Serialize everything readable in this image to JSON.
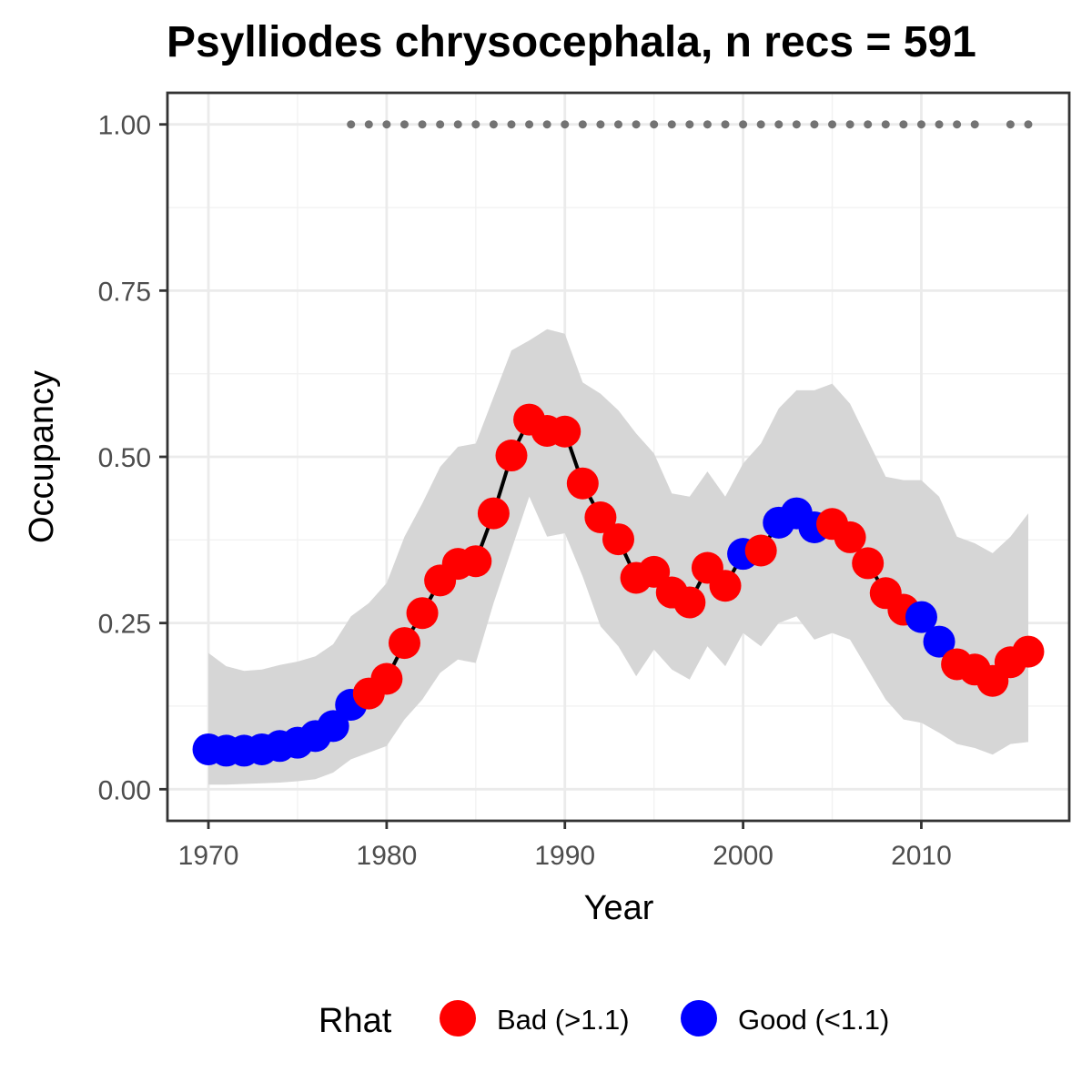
{
  "chart_data": {
    "type": "line",
    "title": "Psylliodes chrysocephala, n recs = 591",
    "xlabel": "Year",
    "ylabel": "Occupancy",
    "xlim": [
      1967.7,
      2018.3
    ],
    "ylim": [
      -0.0475,
      1.0475
    ],
    "x_ticks": [
      1970,
      1980,
      1990,
      2000,
      2010
    ],
    "x_tick_labels": [
      "1970",
      "1980",
      "1990",
      "2000",
      "2010"
    ],
    "y_ticks": [
      0,
      0.25,
      0.5,
      0.75,
      1
    ],
    "y_tick_labels": [
      "0.00",
      "0.25",
      "0.50",
      "0.75",
      "1.00"
    ],
    "grid": true,
    "legend_position": "bottom",
    "legend_title": "Rhat",
    "legend_entries": [
      {
        "label": "Bad (>1.1)",
        "color": "#ff0000"
      },
      {
        "label": "Good (<1.1)",
        "color": "#0000ff"
      }
    ],
    "colors": {
      "bad": "#ff0000",
      "good": "#0000ff",
      "line": "#000000",
      "ribbon": "#d6d6d6",
      "records": "#737373"
    },
    "series": [
      {
        "name": "Occupancy",
        "x": [
          1970,
          1971,
          1972,
          1973,
          1974,
          1975,
          1976,
          1977,
          1978,
          1979,
          1980,
          1981,
          1982,
          1983,
          1984,
          1985,
          1986,
          1987,
          1988,
          1989,
          1990,
          1991,
          1992,
          1993,
          1994,
          1995,
          1996,
          1997,
          1998,
          1999,
          2000,
          2001,
          2002,
          2003,
          2004,
          2005,
          2006,
          2007,
          2008,
          2009,
          2010,
          2011,
          2012,
          2013,
          2014,
          2015,
          2016
        ],
        "y": [
          0.06,
          0.058,
          0.058,
          0.06,
          0.065,
          0.07,
          0.08,
          0.095,
          0.127,
          0.144,
          0.166,
          0.22,
          0.265,
          0.314,
          0.339,
          0.343,
          0.415,
          0.502,
          0.556,
          0.539,
          0.538,
          0.46,
          0.409,
          0.376,
          0.318,
          0.327,
          0.296,
          0.281,
          0.333,
          0.306,
          0.354,
          0.359,
          0.401,
          0.415,
          0.394,
          0.399,
          0.379,
          0.34,
          0.295,
          0.27,
          0.259,
          0.222,
          0.188,
          0.18,
          0.163,
          0.191,
          0.207
        ],
        "rhat": [
          "good",
          "good",
          "good",
          "good",
          "good",
          "good",
          "good",
          "good",
          "good",
          "bad",
          "bad",
          "bad",
          "bad",
          "bad",
          "bad",
          "bad",
          "bad",
          "bad",
          "bad",
          "bad",
          "bad",
          "bad",
          "bad",
          "bad",
          "bad",
          "bad",
          "bad",
          "bad",
          "bad",
          "bad",
          "good",
          "bad",
          "good",
          "good",
          "good",
          "bad",
          "bad",
          "bad",
          "bad",
          "bad",
          "good",
          "good",
          "bad",
          "bad",
          "bad",
          "bad",
          "bad"
        ]
      }
    ],
    "ribbon": {
      "x": [
        1970,
        1971,
        1972,
        1973,
        1974,
        1975,
        1976,
        1977,
        1978,
        1979,
        1980,
        1981,
        1982,
        1983,
        1984,
        1985,
        1986,
        1987,
        1988,
        1989,
        1990,
        1991,
        1992,
        1993,
        1994,
        1995,
        1996,
        1997,
        1998,
        1999,
        2000,
        2001,
        2002,
        2003,
        2004,
        2005,
        2006,
        2007,
        2008,
        2009,
        2010,
        2011,
        2012,
        2013,
        2014,
        2015,
        2016
      ],
      "lower": [
        0.007,
        0.007,
        0.008,
        0.009,
        0.01,
        0.012,
        0.015,
        0.025,
        0.045,
        0.055,
        0.065,
        0.105,
        0.135,
        0.175,
        0.195,
        0.19,
        0.28,
        0.36,
        0.44,
        0.38,
        0.385,
        0.32,
        0.245,
        0.215,
        0.17,
        0.21,
        0.18,
        0.165,
        0.215,
        0.185,
        0.235,
        0.215,
        0.25,
        0.26,
        0.225,
        0.235,
        0.225,
        0.18,
        0.135,
        0.105,
        0.1,
        0.085,
        0.068,
        0.062,
        0.052,
        0.068,
        0.071
      ],
      "upper": [
        0.205,
        0.185,
        0.178,
        0.18,
        0.187,
        0.192,
        0.2,
        0.218,
        0.26,
        0.28,
        0.31,
        0.38,
        0.43,
        0.485,
        0.515,
        0.52,
        0.59,
        0.66,
        0.675,
        0.692,
        0.685,
        0.612,
        0.595,
        0.57,
        0.535,
        0.505,
        0.445,
        0.44,
        0.478,
        0.44,
        0.49,
        0.52,
        0.573,
        0.6,
        0.6,
        0.61,
        0.58,
        0.525,
        0.47,
        0.465,
        0.465,
        0.44,
        0.38,
        0.37,
        0.355,
        0.38,
        0.415
      ]
    },
    "records": {
      "y": 1.0,
      "x": [
        1978,
        1979,
        1980,
        1981,
        1982,
        1983,
        1984,
        1985,
        1986,
        1987,
        1988,
        1989,
        1990,
        1991,
        1992,
        1993,
        1994,
        1995,
        1996,
        1997,
        1998,
        1999,
        2000,
        2001,
        2002,
        2003,
        2004,
        2005,
        2006,
        2007,
        2008,
        2009,
        2010,
        2011,
        2012,
        2013,
        2015,
        2016
      ]
    }
  }
}
